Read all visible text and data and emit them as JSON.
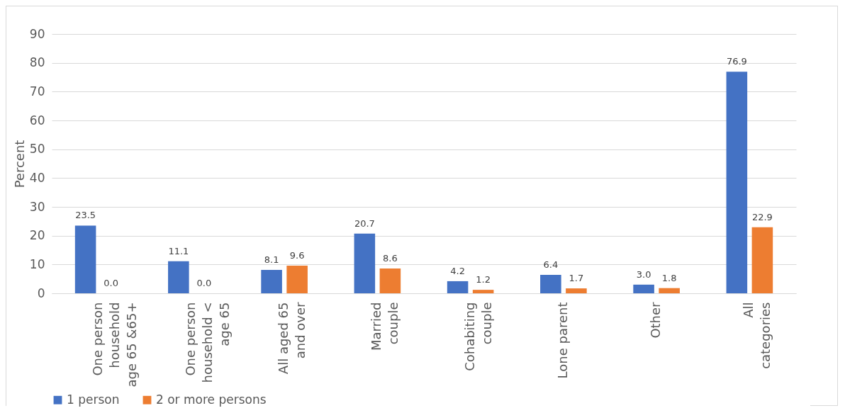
{
  "chart_data": {
    "type": "bar",
    "ylabel": "Percent",
    "categories": [
      "One person household age 65 &65+",
      "One person household < age 65",
      "All aged 65 and over",
      "Married couple",
      "Cohabiting couple",
      "Lone parent",
      "Other",
      "All categories"
    ],
    "series": [
      {
        "name": "1 person",
        "color": "#4472c4",
        "values": [
          23.5,
          11.1,
          8.1,
          20.7,
          4.2,
          6.4,
          3.0,
          76.9
        ],
        "value_labels": [
          "23.5",
          "11.1",
          "8.1",
          "20.7",
          "4.2",
          "6.4",
          "3.0",
          "76.9"
        ]
      },
      {
        "name": "2 or more persons",
        "color": "#ed7d31",
        "values": [
          0.0,
          0.0,
          9.6,
          8.6,
          1.2,
          1.7,
          1.8,
          22.9
        ],
        "value_labels": [
          "0.0",
          "0.0",
          "9.6",
          "8.6",
          "1.2",
          "1.7",
          "1.8",
          "22.9"
        ]
      }
    ],
    "ylim": [
      0,
      90
    ],
    "yticks": [
      0,
      10,
      20,
      30,
      40,
      50,
      60,
      70,
      80,
      90
    ],
    "grid": "y",
    "legend": "bottom"
  }
}
